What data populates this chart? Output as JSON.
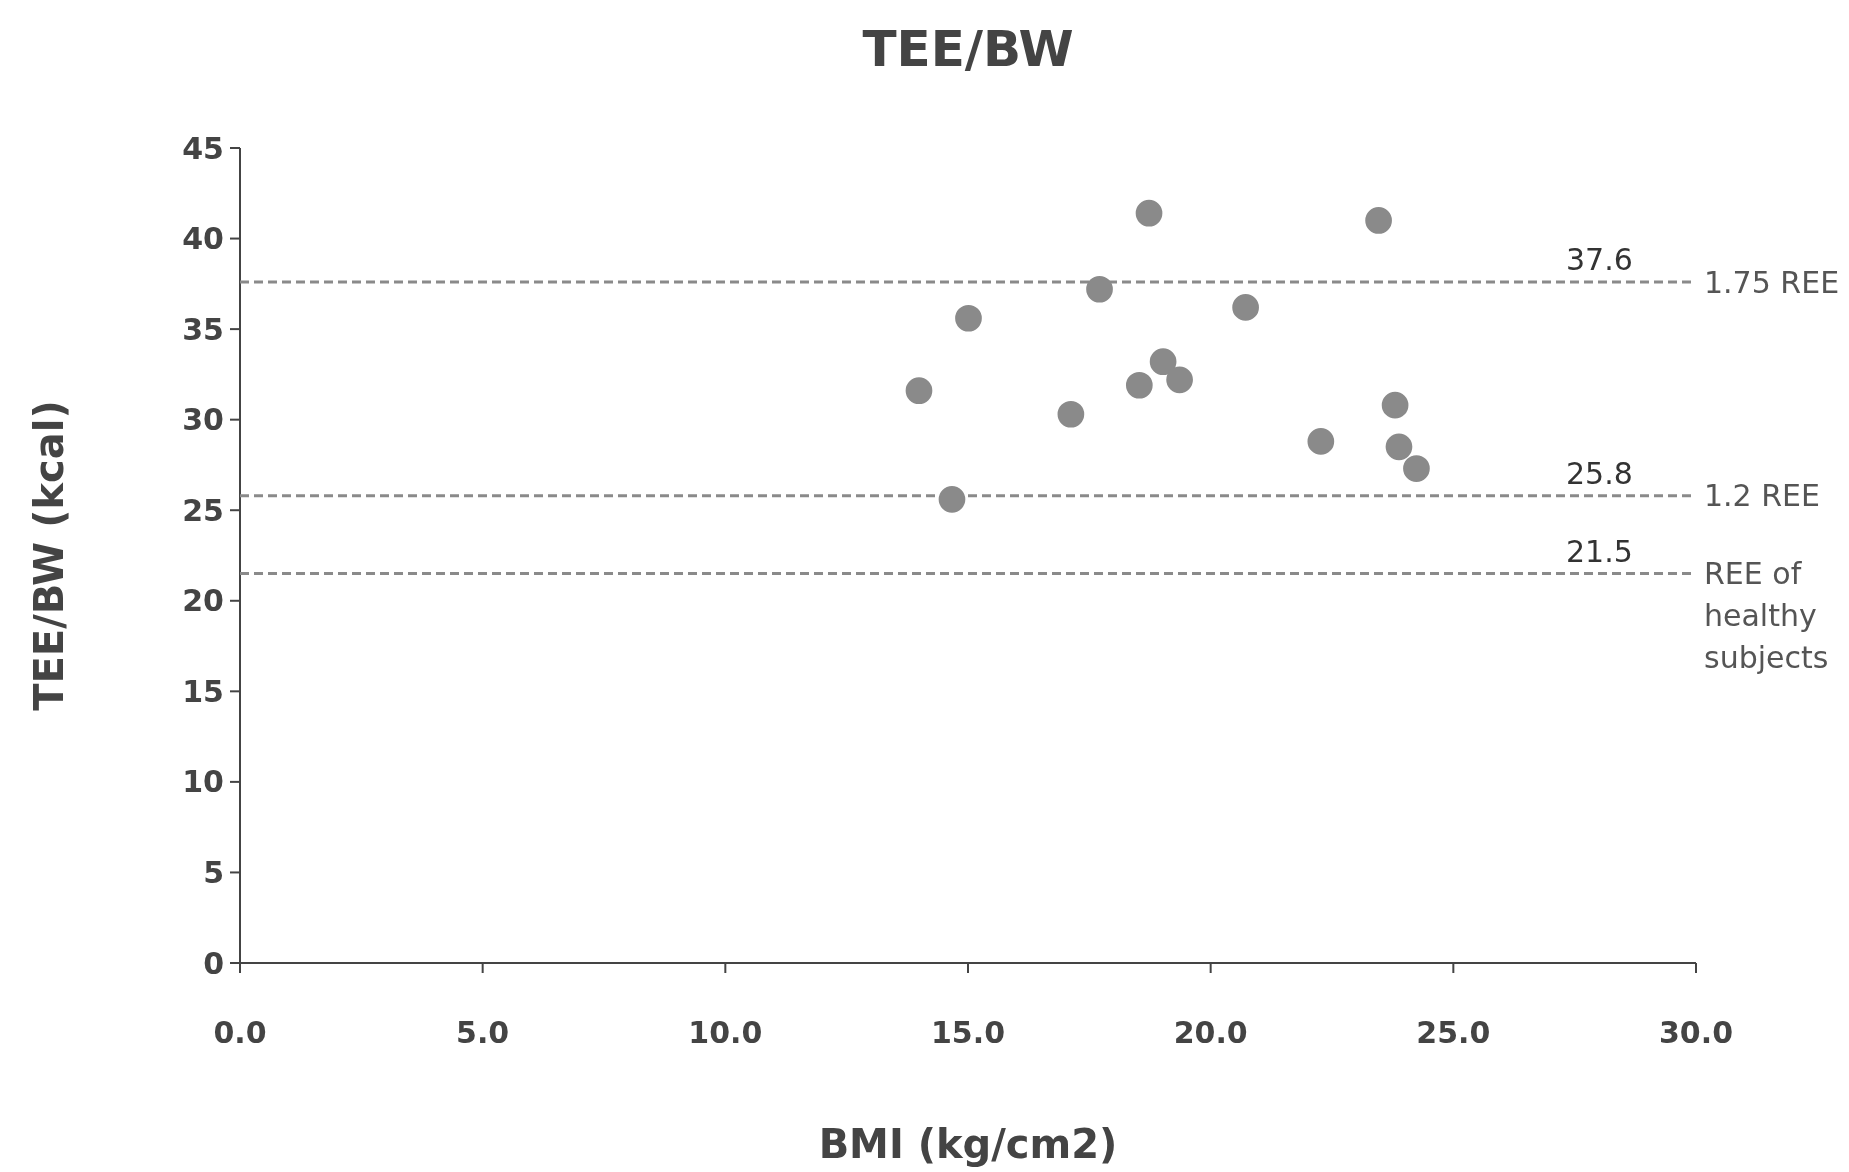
{
  "chart_data": {
    "type": "scatter",
    "title": "TEE/BW",
    "xlabel": "BMI (kg/cm2)",
    "ylabel": "TEE/BW (kcal)",
    "x": [
      13.99,
      14.67,
      15.01,
      17.12,
      17.71,
      18.53,
      18.73,
      19.02,
      19.36,
      20.72,
      22.27,
      23.46,
      23.8,
      23.88,
      24.24
    ],
    "values": [
      31.6,
      25.6,
      35.6,
      30.3,
      37.2,
      31.9,
      41.4,
      33.2,
      32.2,
      36.2,
      28.8,
      41.0,
      30.8,
      28.5,
      27.3
    ],
    "color": "#8a8a8a",
    "marker": "circle",
    "xlim": [
      0,
      30
    ],
    "xticks": [
      {
        "value": 0,
        "label": "0.0"
      },
      {
        "value": 5,
        "label": "5.0"
      },
      {
        "value": 10,
        "label": "10.0"
      },
      {
        "value": 15,
        "label": "15.0"
      },
      {
        "value": 20,
        "label": "20.0"
      },
      {
        "value": 25,
        "label": "25.0"
      },
      {
        "value": 30,
        "label": "30.0"
      }
    ],
    "ylim": [
      0,
      45
    ],
    "yticks": [
      0,
      5,
      10,
      15,
      20,
      25,
      30,
      35,
      40,
      45
    ],
    "ref_lines": [
      {
        "axis": "y",
        "value": 37.6,
        "label": "1.75 REE",
        "color": "#8a8a8a",
        "line_style": "dashed"
      },
      {
        "axis": "y",
        "value": 25.8,
        "label": "1.2 REE",
        "color": "#8a8a8a",
        "line_style": "dashed"
      },
      {
        "axis": "y",
        "value": 21.5,
        "label": "REE of healthy subjects",
        "color": "#8a8a8a",
        "line_style": "dashed"
      }
    ],
    "annotations": [
      {
        "text": "37.6",
        "y": 37.6
      },
      {
        "text": "25.8",
        "y": 25.8
      },
      {
        "text": "21.5",
        "y": 21.5
      }
    ],
    "grid": false
  }
}
